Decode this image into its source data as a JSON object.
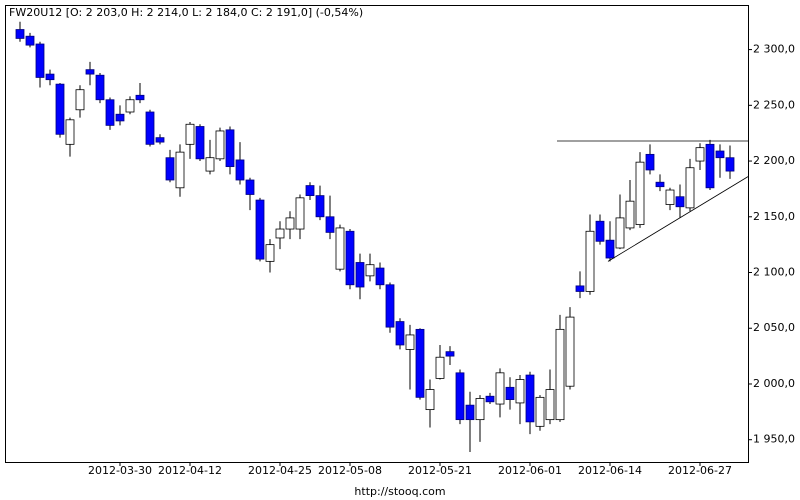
{
  "chart_data": {
    "type": "candlestick",
    "title": "FW20U12 [O: 2 203,0  H: 2 214,0  L: 2 184,0  C: 2 191,0] (-0,54%)",
    "footer": "http://stooq.com",
    "categories": [
      null,
      null,
      null,
      null,
      null,
      null,
      null,
      null,
      null,
      null,
      "2012-03-30",
      null,
      null,
      null,
      null,
      null,
      null,
      "2012-04-12",
      null,
      null,
      null,
      null,
      null,
      null,
      null,
      null,
      "2012-04-25",
      null,
      null,
      null,
      null,
      null,
      null,
      "2012-05-08",
      null,
      null,
      null,
      null,
      null,
      null,
      null,
      null,
      "2012-05-21",
      null,
      null,
      null,
      null,
      null,
      null,
      null,
      null,
      "2012-06-01",
      null,
      null,
      null,
      null,
      null,
      null,
      null,
      "2012-06-14",
      null,
      null,
      null,
      null,
      null,
      null,
      null,
      null,
      "2012-06-27",
      null,
      null,
      null
    ],
    "open": [
      2318,
      2312,
      2305,
      2278,
      2269,
      2215,
      2246,
      2282,
      2277,
      2255,
      2242,
      2244,
      2259,
      2244,
      2221,
      2203,
      2176,
      2215,
      2231,
      2191,
      2202,
      2228,
      2201,
      2183,
      2165,
      2110,
      2131,
      2139,
      2139,
      2178,
      2169,
      2150,
      2103,
      2137,
      2109,
      2097,
      2104,
      2089,
      2056,
      2031,
      2049,
      1977,
      2005,
      2029,
      2010,
      1981,
      1968,
      1989,
      1982,
      1997,
      1983,
      2008,
      1962,
      1968,
      1968,
      1998,
      2088,
      2083,
      2146,
      2129,
      2122,
      2140,
      2143,
      2206,
      2181,
      2161,
      2168,
      2158,
      2200,
      2215,
      2209,
      2203
    ],
    "high": [
      2325,
      2315,
      2307,
      2282,
      2270,
      2239,
      2268,
      2289,
      2279,
      2257,
      2250,
      2258,
      2270,
      2246,
      2224,
      2210,
      2215,
      2235,
      2233,
      2219,
      2230,
      2231,
      2217,
      2185,
      2167,
      2130,
      2146,
      2155,
      2170,
      2181,
      2178,
      2169,
      2143,
      2139,
      2117,
      2117,
      2109,
      2091,
      2059,
      2053,
      2050,
      2004,
      2035,
      2034,
      2013,
      1993,
      1990,
      1992,
      2014,
      2006,
      2008,
      2011,
      1990,
      2013,
      2062,
      2069,
      2101,
      2152,
      2152,
      2146,
      2170,
      2183,
      2208,
      2215,
      2188,
      2176,
      2179,
      2202,
      2216,
      2219,
      2215,
      2214
    ],
    "low": [
      2307,
      2302,
      2266,
      2268,
      2221,
      2204,
      2239,
      2268,
      2252,
      2228,
      2232,
      2242,
      2252,
      2213,
      2215,
      2181,
      2168,
      2202,
      2200,
      2188,
      2200,
      2188,
      2179,
      2156,
      2110,
      2100,
      2121,
      2130,
      2130,
      2165,
      2147,
      2130,
      2101,
      2085,
      2076,
      2092,
      2085,
      2046,
      2031,
      1995,
      1986,
      1961,
      2004,
      2017,
      1964,
      1939,
      1948,
      1982,
      1970,
      1977,
      1964,
      1955,
      1958,
      1964,
      1966,
      1995,
      2077,
      2080,
      2125,
      2110,
      2121,
      2138,
      2140,
      2188,
      2173,
      2156,
      2149,
      2155,
      2192,
      2174,
      2185,
      2184
    ],
    "close": [
      2310,
      2304,
      2275,
      2273,
      2224,
      2237,
      2264,
      2278,
      2255,
      2232,
      2236,
      2255,
      2255,
      2215,
      2217,
      2183,
      2208,
      2233,
      2202,
      2203,
      2227,
      2195,
      2183,
      2170,
      2112,
      2125,
      2139,
      2149,
      2167,
      2169,
      2150,
      2136,
      2140,
      2089,
      2087,
      2107,
      2089,
      2051,
      2035,
      2044,
      1988,
      1995,
      2024,
      2025,
      1968,
      1968,
      1987,
      1984,
      2010,
      1986,
      2004,
      1966,
      1988,
      1995,
      2049,
      2060,
      2083,
      2137,
      2128,
      2113,
      2149,
      2164,
      2199,
      2192,
      2177,
      2174,
      2159,
      2194,
      2212,
      2176,
      2203,
      2191
    ],
    "up_color": "#ffffff",
    "down_color": "#0000ff",
    "trend_lines": [
      {
        "x": [
          53.7,
          72.8
        ],
        "values": [
          2218,
          2218
        ]
      },
      {
        "x": [
          58.8,
          72.8
        ],
        "values": [
          2110,
          2186
        ]
      }
    ],
    "ylim": [
      1930,
      2340
    ],
    "yticks": [
      {
        "value": 1950,
        "label": "1 950,0"
      },
      {
        "value": 2000,
        "label": "2 000,0"
      },
      {
        "value": 2050,
        "label": "2 050,0"
      },
      {
        "value": 2100,
        "label": "2 100,0"
      },
      {
        "value": 2150,
        "label": "2 150,0"
      },
      {
        "value": 2200,
        "label": "2 200,0"
      },
      {
        "value": 2250,
        "label": "2 250,0"
      },
      {
        "value": 2300,
        "label": "2 300,0"
      }
    ]
  }
}
